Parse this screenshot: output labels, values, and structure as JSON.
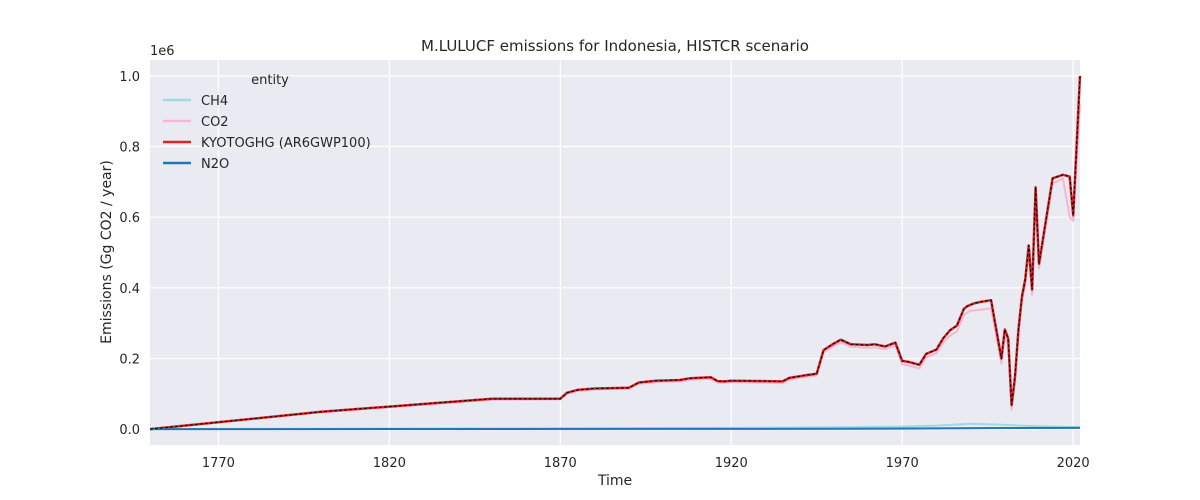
{
  "chart_data": {
    "type": "line",
    "title": "M.LULUCF emissions for Indonesia, HISTCR scenario",
    "xlabel": "Time",
    "ylabel": "Emissions (Gg CO2 / year)",
    "y_offset_text": "1e6",
    "xlim": [
      1750,
      2022
    ],
    "ylim": [
      -45000,
      1045000
    ],
    "x_ticks": [
      1770,
      1820,
      1870,
      1920,
      1970,
      2020
    ],
    "x_tick_labels": [
      "1770",
      "1820",
      "1870",
      "1920",
      "1970",
      "2020"
    ],
    "y_ticks": [
      0,
      200000,
      400000,
      600000,
      800000,
      1000000
    ],
    "y_tick_labels": [
      "0.0",
      "0.2",
      "0.4",
      "0.6",
      "0.8",
      "1.0"
    ],
    "grid": true,
    "legend": {
      "title": "entity",
      "position": "top-left",
      "entries": [
        "CH4",
        "CO2",
        "KYOTOGHG (AR6GWP100)",
        "N2O"
      ]
    },
    "series": [
      {
        "name": "CH4",
        "color": "#9edae5",
        "x": [
          1750,
          1800,
          1850,
          1890,
          1920,
          1950,
          1970,
          1980,
          1990,
          2000,
          2010,
          2022
        ],
        "values": [
          0,
          1000,
          2000,
          2500,
          3500,
          5000,
          7000,
          10000,
          15000,
          12000,
          8000,
          5000
        ]
      },
      {
        "name": "CO2",
        "color": "#f7b6d2",
        "x": [
          1750,
          1800,
          1850,
          1870,
          1872,
          1875,
          1880,
          1890,
          1893,
          1898,
          1905,
          1908,
          1914,
          1916,
          1918,
          1920,
          1930,
          1935,
          1937,
          1942,
          1945,
          1947,
          1950,
          1952,
          1955,
          1960,
          1962,
          1965,
          1968,
          1970,
          1972,
          1975,
          1977,
          1980,
          1982,
          1984,
          1986,
          1988,
          1989,
          1990,
          1991,
          1993,
          1996,
          1999,
          2000,
          2001,
          2002,
          2003,
          2004,
          2005,
          2006,
          2007,
          2008,
          2009,
          2010,
          2014,
          2017,
          2019,
          2020,
          2022
        ],
        "values": [
          0,
          48000,
          83000,
          84000,
          100000,
          108000,
          112000,
          114000,
          128000,
          133000,
          135000,
          140000,
          143000,
          132000,
          131000,
          133000,
          131000,
          130000,
          140000,
          148000,
          152000,
          218000,
          235000,
          246000,
          233000,
          230000,
          232000,
          226000,
          237000,
          183000,
          180000,
          172000,
          203000,
          215000,
          245000,
          265000,
          276000,
          323000,
          330000,
          335000,
          336000,
          338000,
          342000,
          185000,
          265000,
          240000,
          55000,
          135000,
          270000,
          360000,
          410000,
          505000,
          380000,
          670000,
          455000,
          695000,
          710000,
          600000,
          590000,
          920000
        ]
      },
      {
        "name": "KYOTOGHG (AR6GWP100)",
        "color": "#d62728",
        "x": [
          1750,
          1800,
          1850,
          1870,
          1872,
          1875,
          1880,
          1890,
          1893,
          1898,
          1905,
          1908,
          1914,
          1916,
          1918,
          1920,
          1930,
          1935,
          1937,
          1942,
          1945,
          1947,
          1950,
          1952,
          1955,
          1960,
          1962,
          1965,
          1968,
          1970,
          1972,
          1975,
          1977,
          1980,
          1982,
          1984,
          1986,
          1988,
          1989,
          1990,
          1991,
          1993,
          1996,
          1999,
          2000,
          2001,
          2002,
          2003,
          2004,
          2005,
          2006,
          2007,
          2008,
          2009,
          2010,
          2014,
          2017,
          2019,
          2020,
          2022
        ],
        "values": [
          0,
          49000,
          86000,
          86000,
          103000,
          111000,
          115000,
          117000,
          132000,
          137000,
          139000,
          144000,
          147000,
          136000,
          135000,
          137000,
          136000,
          135000,
          145000,
          153000,
          157000,
          224000,
          242000,
          253000,
          240000,
          238000,
          240000,
          234000,
          245000,
          193000,
          190000,
          182000,
          213000,
          225000,
          257000,
          280000,
          293000,
          340000,
          348000,
          352000,
          356000,
          360000,
          365000,
          200000,
          282000,
          257000,
          68000,
          148000,
          283000,
          375000,
          425000,
          520000,
          395000,
          685000,
          468000,
          710000,
          720000,
          715000,
          605000,
          1000000
        ]
      },
      {
        "name": "N2O",
        "color": "#1f77b4",
        "x": [
          1750,
          1850,
          1950,
          1980,
          2000,
          2022
        ],
        "values": [
          0,
          200,
          800,
          2000,
          3000,
          3500
        ]
      }
    ]
  }
}
